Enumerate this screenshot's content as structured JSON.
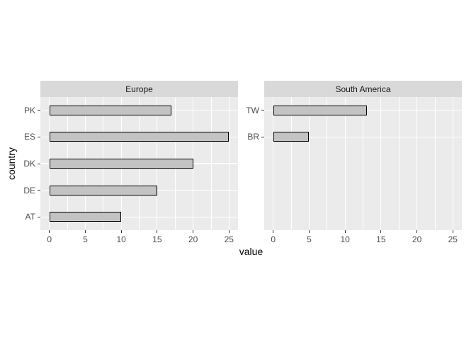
{
  "chart_data": {
    "type": "bar",
    "orientation": "horizontal",
    "xlabel": "value",
    "ylabel": "country",
    "x_ticks": [
      0,
      5,
      10,
      15,
      20,
      25
    ],
    "x_minor_ticks": [
      2.5,
      7.5,
      12.5,
      17.5,
      22.5
    ],
    "xlim": [
      -1.25,
      26.25
    ],
    "rows_per_panel": 5,
    "grid": "on",
    "legend": "none",
    "facets": [
      {
        "label": "Europe",
        "categories": [
          "PK",
          "ES",
          "DK",
          "DE",
          "AT"
        ],
        "values": [
          17,
          25,
          20,
          15,
          10
        ]
      },
      {
        "label": "South America",
        "categories": [
          "TW",
          "BR"
        ],
        "values": [
          13,
          5
        ]
      }
    ],
    "colors": {
      "bar_fill": "#C3C3C3",
      "bar_border": "#000000",
      "panel_bg": "#EBEBEB",
      "strip_bg": "#D9D9D9",
      "gridline": "#FFFFFF",
      "axis_text": "#4D4D4D",
      "axis_title": "#000000",
      "tick_mark": "#333333",
      "background": "#FFFFFF"
    }
  }
}
